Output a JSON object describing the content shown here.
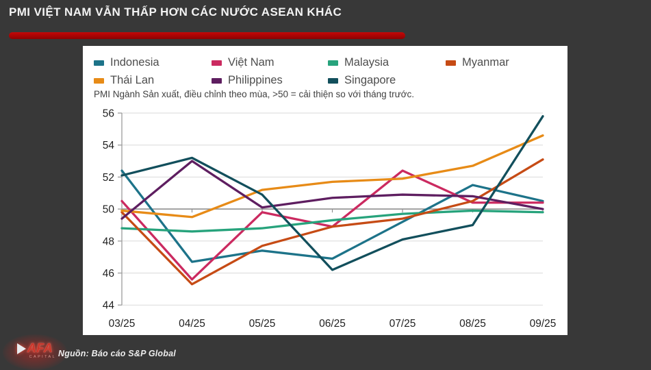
{
  "page": {
    "title": "PMI VIỆT NAM VẪN THẤP HƠN CÁC NƯỚC ASEAN KHÁC",
    "source": "Nguồn: Báo cáo S&P Global",
    "logo": {
      "text": "AFA",
      "sub": "CAPITAL"
    }
  },
  "colors": {
    "background": "#383838",
    "accent_red": "#b00606",
    "panel": "#ffffff",
    "gridline": "#dadada",
    "baseline": "#8f8f8f",
    "axis": "#9c9c9c"
  },
  "chart_data": {
    "type": "line",
    "title": "",
    "subtitle": "PMI Ngành Sản xuất, điều chỉnh theo mùa, >50 = cải thiện so với tháng trước.",
    "categories": [
      "03/25",
      "04/25",
      "05/25",
      "06/25",
      "07/25",
      "08/25",
      "09/25"
    ],
    "series": [
      {
        "name": "Indonesia",
        "color": "#1d7389",
        "values": [
          52.4,
          46.7,
          47.4,
          46.9,
          49.2,
          51.5,
          50.5
        ]
      },
      {
        "name": "Việt Nam",
        "color": "#cb2a60",
        "values": [
          50.5,
          45.6,
          49.8,
          48.9,
          52.4,
          50.4,
          50.4
        ]
      },
      {
        "name": "Malaysia",
        "color": "#27a37c",
        "values": [
          48.8,
          48.6,
          48.8,
          49.3,
          49.7,
          49.9,
          49.8
        ]
      },
      {
        "name": "Myanmar",
        "color": "#c64b15",
        "values": [
          49.8,
          45.3,
          47.7,
          48.9,
          49.4,
          50.5,
          53.1
        ]
      },
      {
        "name": "Thái Lan",
        "color": "#e78b17",
        "values": [
          49.9,
          49.5,
          51.2,
          51.7,
          51.9,
          52.7,
          54.6
        ]
      },
      {
        "name": "Philippines",
        "color": "#5e1e60",
        "values": [
          49.4,
          53.0,
          50.1,
          50.7,
          50.9,
          50.8,
          50.0
        ]
      },
      {
        "name": "Singapore",
        "color": "#124f5c",
        "values": [
          52.1,
          53.2,
          50.9,
          46.2,
          48.1,
          49.0,
          55.8
        ]
      }
    ],
    "xlabel": "",
    "ylabel": "",
    "ylim": [
      44,
      56
    ],
    "yticks": [
      56,
      54,
      52,
      50,
      48,
      46,
      44
    ],
    "baseline_value": 50,
    "grid": true,
    "legend_position": "top"
  }
}
